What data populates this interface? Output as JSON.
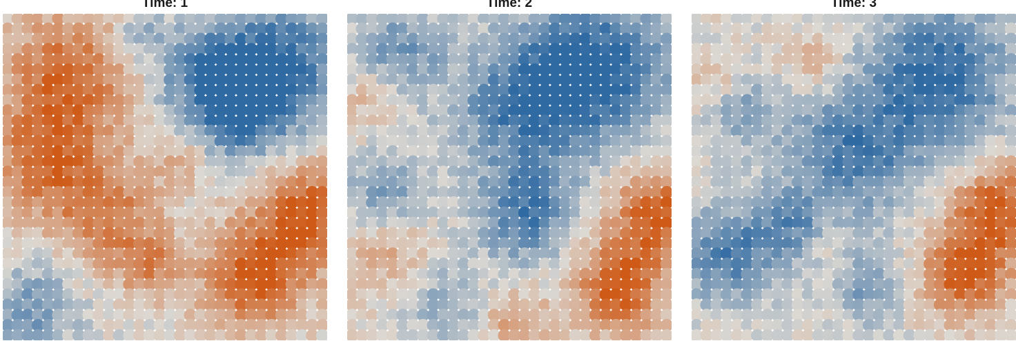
{
  "chart_data": [
    {
      "type": "heatmap",
      "title": "Time: 1",
      "grid": false,
      "legend": "none",
      "color_low": "#2f6aa3",
      "color_mid": "#dcd8d2",
      "color_high": "#cf5a17",
      "value_range": [
        -1,
        1
      ],
      "description_of_field": "spatial field sampled on a 32 x 32 grid of points",
      "hotspots": [
        {
          "cx": 0.2,
          "cy": 0.18,
          "r": 0.2,
          "amp": 0.85
        },
        {
          "cx": 0.12,
          "cy": 0.45,
          "r": 0.18,
          "amp": 0.75
        },
        {
          "cx": 0.32,
          "cy": 0.62,
          "r": 0.16,
          "amp": 0.7
        },
        {
          "cx": 0.45,
          "cy": 0.78,
          "r": 0.1,
          "amp": 0.6
        },
        {
          "cx": 0.78,
          "cy": 0.82,
          "r": 0.16,
          "amp": 1.0
        },
        {
          "cx": 0.95,
          "cy": 0.62,
          "r": 0.16,
          "amp": 1.0
        },
        {
          "cx": 0.55,
          "cy": 0.45,
          "r": 0.08,
          "amp": 0.4
        },
        {
          "cx": 0.86,
          "cy": 0.15,
          "r": 0.2,
          "amp": -1.0
        },
        {
          "cx": 0.62,
          "cy": 0.18,
          "r": 0.15,
          "amp": -0.75
        },
        {
          "cx": 0.75,
          "cy": 0.32,
          "r": 0.14,
          "amp": -0.7
        },
        {
          "cx": 0.08,
          "cy": 0.92,
          "r": 0.14,
          "amp": -0.6
        },
        {
          "cx": 0.42,
          "cy": 0.05,
          "r": 0.08,
          "amp": -0.45
        }
      ]
    },
    {
      "type": "heatmap",
      "title": "Time: 2",
      "grid": false,
      "legend": "none",
      "color_low": "#2f6aa3",
      "color_mid": "#dcd8d2",
      "color_high": "#cf5a17",
      "value_range": [
        -1,
        1
      ],
      "description_of_field": "spatial field sampled on a 32 x 32 grid of points",
      "hotspots": [
        {
          "cx": 0.8,
          "cy": 0.15,
          "r": 0.22,
          "amp": -1.0
        },
        {
          "cx": 0.55,
          "cy": 0.28,
          "r": 0.22,
          "amp": -0.85
        },
        {
          "cx": 0.55,
          "cy": 0.62,
          "r": 0.15,
          "amp": -0.8
        },
        {
          "cx": 0.15,
          "cy": 0.1,
          "r": 0.14,
          "amp": -0.6
        },
        {
          "cx": 0.1,
          "cy": 0.55,
          "r": 0.12,
          "amp": -0.55
        },
        {
          "cx": 0.3,
          "cy": 0.9,
          "r": 0.12,
          "amp": -0.45
        },
        {
          "cx": 0.85,
          "cy": 0.85,
          "r": 0.14,
          "amp": 1.0
        },
        {
          "cx": 0.97,
          "cy": 0.62,
          "r": 0.14,
          "amp": 1.0
        },
        {
          "cx": 0.12,
          "cy": 0.75,
          "r": 0.12,
          "amp": 0.4
        },
        {
          "cx": 0.07,
          "cy": 0.25,
          "r": 0.1,
          "amp": 0.3
        },
        {
          "cx": 0.52,
          "cy": 0.95,
          "r": 0.1,
          "amp": 0.45
        }
      ]
    },
    {
      "type": "heatmap",
      "title": "Time: 3",
      "grid": false,
      "legend": "none",
      "color_low": "#2f6aa3",
      "color_mid": "#dcd8d2",
      "color_high": "#cf5a17",
      "value_range": [
        -1,
        1
      ],
      "description_of_field": "spatial field sampled on a 32 x 32 grid of points",
      "hotspots": [
        {
          "cx": 0.78,
          "cy": 0.18,
          "r": 0.22,
          "amp": -1.0
        },
        {
          "cx": 0.5,
          "cy": 0.42,
          "r": 0.2,
          "amp": -0.85
        },
        {
          "cx": 0.1,
          "cy": 0.75,
          "r": 0.15,
          "amp": -0.8
        },
        {
          "cx": 0.3,
          "cy": 0.65,
          "r": 0.12,
          "amp": -0.6
        },
        {
          "cx": 0.55,
          "cy": 0.85,
          "r": 0.12,
          "amp": -0.55
        },
        {
          "cx": 0.15,
          "cy": 0.3,
          "r": 0.12,
          "amp": -0.45
        },
        {
          "cx": 0.85,
          "cy": 0.8,
          "r": 0.14,
          "amp": 1.0
        },
        {
          "cx": 0.96,
          "cy": 0.6,
          "r": 0.14,
          "amp": 0.95
        },
        {
          "cx": 0.38,
          "cy": 0.15,
          "r": 0.1,
          "amp": 0.35
        },
        {
          "cx": 0.42,
          "cy": 0.72,
          "r": 0.06,
          "amp": 0.35
        },
        {
          "cx": 0.05,
          "cy": 0.2,
          "r": 0.08,
          "amp": 0.3
        }
      ]
    }
  ]
}
